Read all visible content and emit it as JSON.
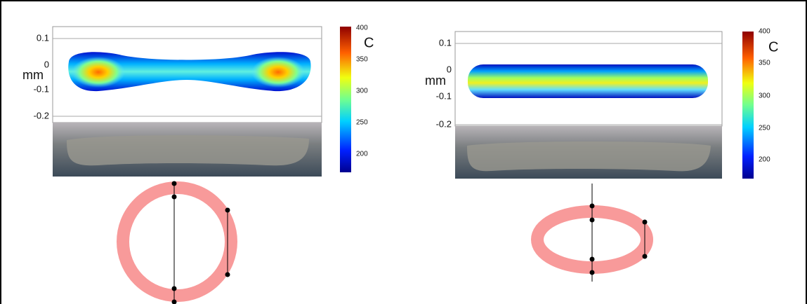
{
  "panels": [
    {
      "y_axis_label": "mm",
      "y_ticks": [
        0.1,
        0,
        -0.1,
        -0.2
      ],
      "colorbar_label": "C",
      "colorbar_ticks": [
        400,
        350,
        300,
        250,
        200
      ]
    },
    {
      "y_axis_label": "mm",
      "y_ticks": [
        0.1,
        0,
        -0.1,
        -0.2
      ],
      "colorbar_label": "C",
      "colorbar_ticks": [
        400,
        350,
        300,
        250,
        200
      ]
    }
  ]
}
